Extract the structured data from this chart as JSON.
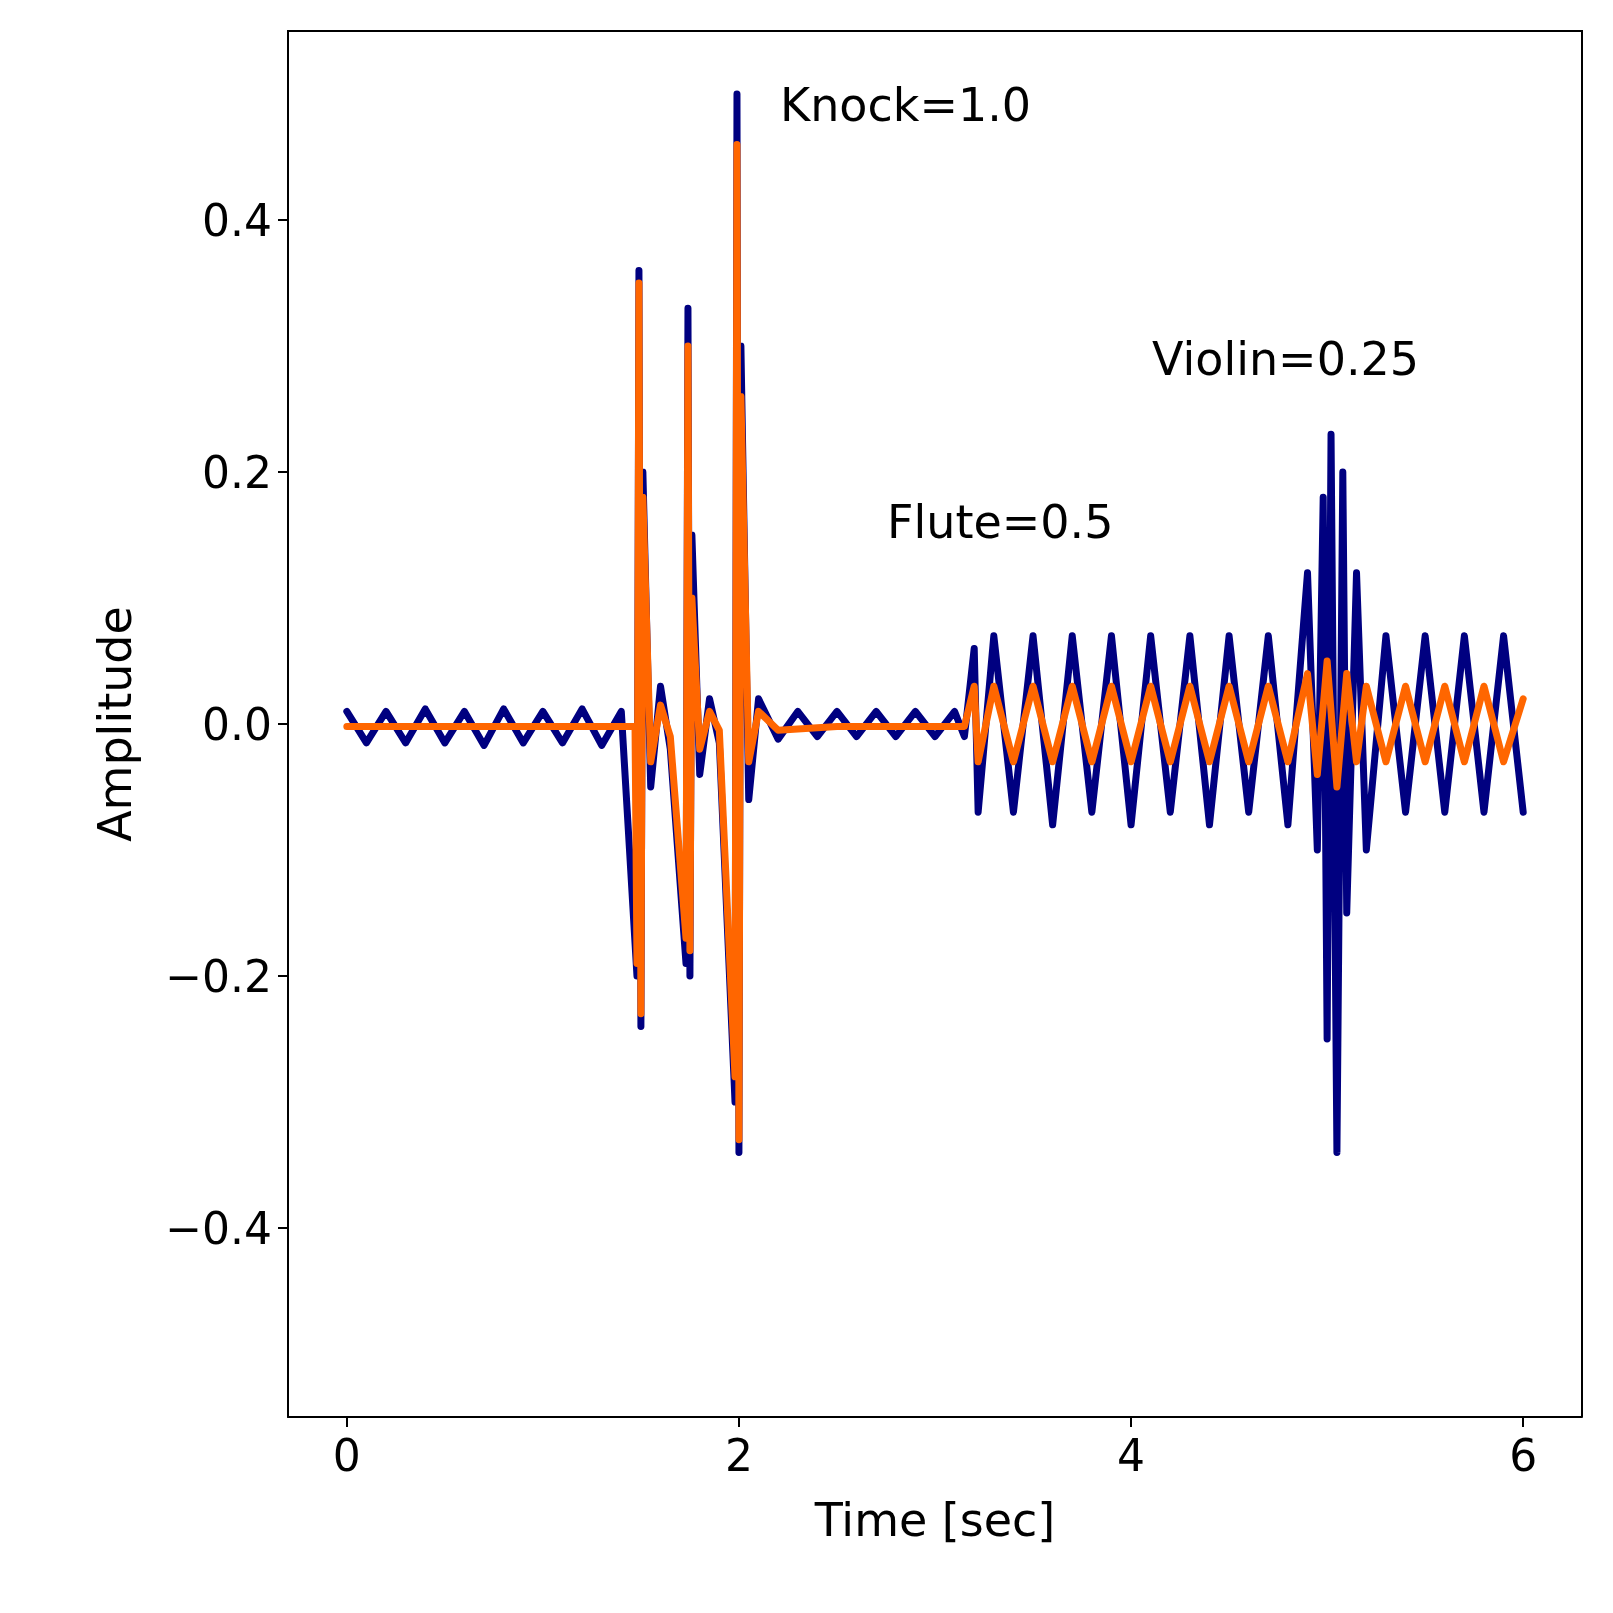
{
  "chart_data": {
    "type": "line",
    "xlabel": "Time [sec]",
    "ylabel": "Amplitude",
    "xlim": [
      -0.3,
      6.3
    ],
    "ylim": [
      -0.55,
      0.55
    ],
    "xticks": [
      0,
      2,
      4,
      6
    ],
    "yticks": [
      {
        "value": -0.4,
        "label": "−0.4"
      },
      {
        "value": -0.2,
        "label": "−0.2"
      },
      {
        "value": 0,
        "label": "0.0"
      },
      {
        "value": 0.2,
        "label": "0.2"
      },
      {
        "value": 0.4,
        "label": "0.4"
      }
    ],
    "series": [
      {
        "color": "#000080",
        "x": [
          0,
          0.1,
          0.2,
          0.3,
          0.4,
          0.5,
          0.6,
          0.7,
          0.8,
          0.9,
          1.0,
          1.1,
          1.2,
          1.3,
          1.4,
          1.48,
          1.49,
          1.5,
          1.51,
          1.55,
          1.6,
          1.65,
          1.73,
          1.74,
          1.75,
          1.76,
          1.8,
          1.85,
          1.9,
          1.98,
          1.99,
          2.0,
          2.01,
          2.05,
          2.1,
          2.2,
          2.3,
          2.4,
          2.5,
          2.6,
          2.7,
          2.8,
          2.9,
          3.0,
          3.1,
          3.15,
          3.2,
          3.22,
          3.3,
          3.4,
          3.5,
          3.6,
          3.7,
          3.8,
          3.9,
          4.0,
          4.1,
          4.2,
          4.3,
          4.4,
          4.5,
          4.6,
          4.7,
          4.8,
          4.9,
          4.95,
          4.98,
          5.0,
          5.02,
          5.05,
          5.08,
          5.1,
          5.15,
          5.2,
          5.3,
          5.4,
          5.5,
          5.6,
          5.7,
          5.8,
          5.9,
          6.0
        ],
        "values": [
          0.01,
          -0.015,
          0.01,
          -0.015,
          0.012,
          -0.015,
          0.01,
          -0.017,
          0.012,
          -0.015,
          0.01,
          -0.015,
          0.012,
          -0.017,
          0.01,
          -0.2,
          0.36,
          -0.24,
          0.2,
          -0.05,
          0.03,
          -0.02,
          -0.19,
          0.33,
          -0.2,
          0.15,
          -0.04,
          0.02,
          -0.015,
          -0.3,
          0.5,
          -0.34,
          0.3,
          -0.06,
          0.02,
          -0.012,
          0.01,
          -0.01,
          0.01,
          -0.01,
          0.01,
          -0.01,
          0.01,
          -0.01,
          0.01,
          -0.01,
          0.06,
          -0.07,
          0.07,
          -0.07,
          0.07,
          -0.08,
          0.07,
          -0.07,
          0.07,
          -0.08,
          0.07,
          -0.07,
          0.07,
          -0.08,
          0.07,
          -0.07,
          0.07,
          -0.08,
          0.12,
          -0.1,
          0.18,
          -0.25,
          0.23,
          -0.34,
          0.2,
          -0.15,
          0.12,
          -0.1,
          0.07,
          -0.07,
          0.07,
          -0.07,
          0.07,
          -0.07,
          0.07,
          -0.07
        ]
      },
      {
        "color": "#ff6600",
        "x": [
          0,
          0.5,
          1.47,
          1.48,
          1.49,
          1.5,
          1.51,
          1.55,
          1.6,
          1.65,
          1.73,
          1.74,
          1.75,
          1.76,
          1.8,
          1.85,
          1.9,
          1.98,
          1.99,
          2.0,
          2.01,
          2.05,
          2.1,
          2.2,
          2.5,
          3.0,
          3.15,
          3.2,
          3.22,
          3.3,
          3.4,
          3.5,
          3.6,
          3.7,
          3.8,
          3.9,
          4.0,
          4.1,
          4.2,
          4.3,
          4.4,
          4.5,
          4.6,
          4.7,
          4.8,
          4.9,
          4.95,
          5.0,
          5.05,
          5.1,
          5.15,
          5.2,
          5.3,
          5.4,
          5.5,
          5.6,
          5.7,
          5.8,
          5.9,
          6.0
        ],
        "values": [
          -0.002,
          -0.002,
          -0.002,
          -0.19,
          0.35,
          -0.23,
          0.18,
          -0.03,
          0.015,
          -0.01,
          -0.17,
          0.3,
          -0.18,
          0.1,
          -0.02,
          0.01,
          -0.005,
          -0.28,
          0.46,
          -0.33,
          0.26,
          -0.03,
          0.01,
          -0.005,
          -0.002,
          -0.002,
          -0.002,
          0.03,
          -0.03,
          0.03,
          -0.03,
          0.03,
          -0.03,
          0.03,
          -0.03,
          0.03,
          -0.03,
          0.03,
          -0.03,
          0.03,
          -0.03,
          0.03,
          -0.03,
          0.03,
          -0.03,
          0.04,
          -0.04,
          0.05,
          -0.05,
          0.04,
          -0.03,
          0.03,
          -0.03,
          0.03,
          -0.03,
          0.03,
          -0.03,
          0.03,
          -0.03,
          0.02
        ]
      }
    ],
    "annotations": [
      "Knock=1.0",
      "Flute=0.5",
      "Violin=0.25"
    ]
  }
}
